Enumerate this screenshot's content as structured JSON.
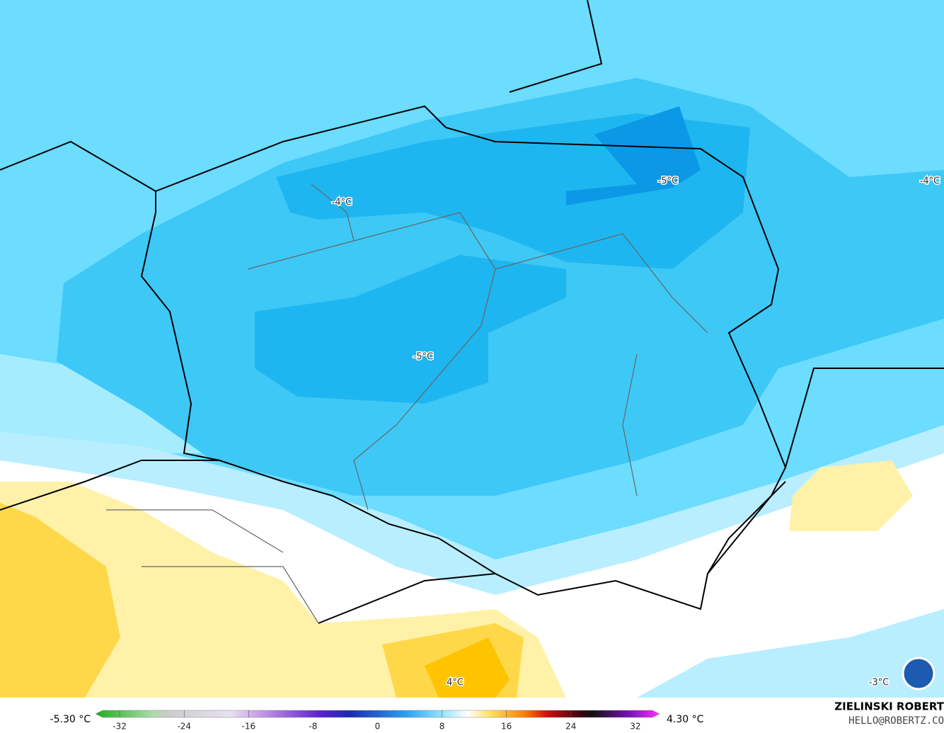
{
  "map": {
    "labels": [
      "-4°C",
      "-5°C",
      "-5°C",
      "-4°C",
      "4°C",
      "-3°C"
    ],
    "credit": {
      "name": "ZIELINSKI ROBERT",
      "contact": "HELLO@ROBERTZ.CO"
    },
    "colorbar": {
      "min_label": "-5.30 °C",
      "max_label": "4.30 °C",
      "lim": [
        -35,
        35
      ],
      "ticks": [
        -32,
        -24,
        -16,
        -8,
        0,
        8,
        16,
        24,
        32
      ]
    }
  }
}
